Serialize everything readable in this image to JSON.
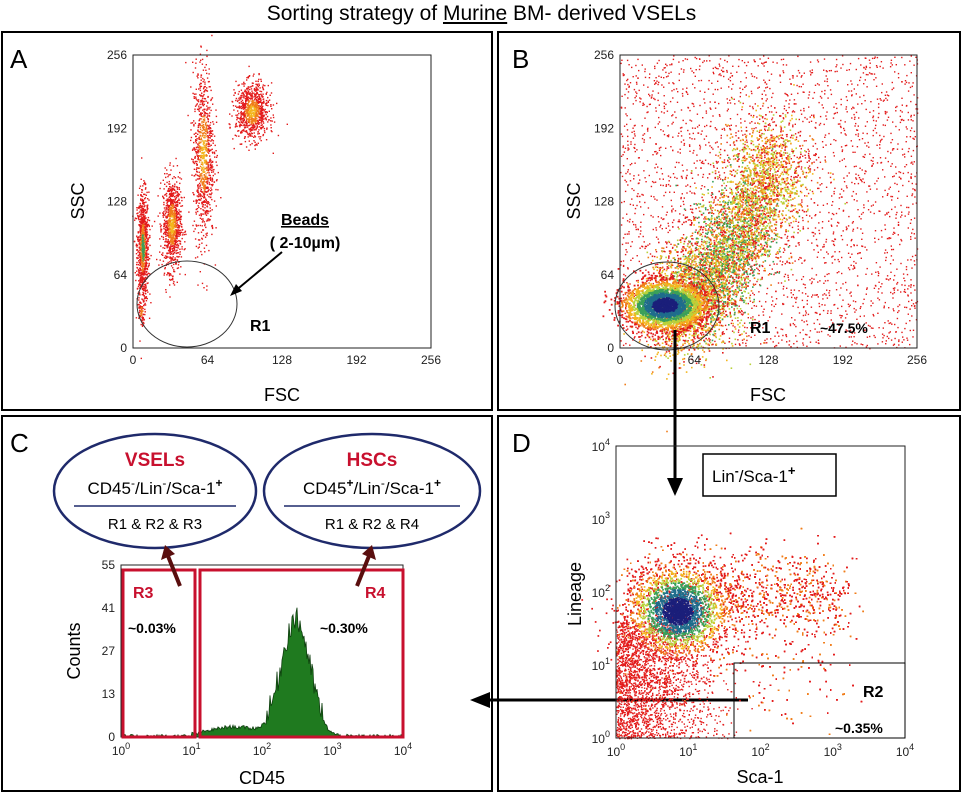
{
  "title": {
    "pre": "Sorting  strategy of ",
    "underlined": "Murine",
    "post": " BM- derived VSELs"
  },
  "panels": {
    "A": {
      "letter": "A",
      "xlabel": "FSC",
      "ylabel": "SSC",
      "xticks": [
        "0",
        "64",
        "128",
        "192",
        "256"
      ],
      "yticks": [
        "0",
        "64",
        "128",
        "192",
        "256"
      ],
      "gate": "R1",
      "beads_title": "Beads",
      "beads_size": "( 2-10µm)"
    },
    "B": {
      "letter": "B",
      "xlabel": "FSC",
      "ylabel": "SSC",
      "xticks": [
        "0",
        "64",
        "128",
        "192",
        "256"
      ],
      "yticks": [
        "0",
        "64",
        "128",
        "192",
        "256"
      ],
      "gate": "R1",
      "gate_pct": "~47.5%"
    },
    "C": {
      "letter": "C",
      "xlabel": "CD45",
      "ylabel": "Counts",
      "yticks": [
        "0",
        "13",
        "27",
        "41",
        "55"
      ],
      "gates": [
        {
          "name": "R3",
          "pct": "~0.03%"
        },
        {
          "name": "R4",
          "pct": "~0.30%"
        }
      ],
      "vsel": {
        "name": "VSELs",
        "rule": "R1 & R2 & R3"
      },
      "hsc": {
        "name": "HSCs",
        "rule": "R1 & R2 & R4"
      }
    },
    "D": {
      "letter": "D",
      "xlabel": "Sca-1",
      "ylabel": "Lineage",
      "label_box": "Lin",
      "gate": "R2",
      "gate_pct": "~0.35%"
    }
  },
  "chart_data": [
    {
      "type": "scatter",
      "panel": "A",
      "xlabel": "FSC",
      "ylabel": "SSC",
      "xlim": [
        0,
        256
      ],
      "ylim": [
        0,
        256
      ],
      "clusters": [
        {
          "x": 8,
          "y": 88,
          "sx": 2.5,
          "sy": 24
        },
        {
          "x": 33,
          "y": 108,
          "sx": 4,
          "sy": 20
        },
        {
          "x": 60,
          "y": 170,
          "sx": 4.5,
          "sy": 38
        },
        {
          "x": 102,
          "y": 207,
          "sx": 7,
          "sy": 12
        },
        {
          "x": 7,
          "y": 32,
          "sx": 1.5,
          "sy": 5
        }
      ]
    },
    {
      "type": "scatter",
      "panel": "B",
      "xlabel": "FSC",
      "ylabel": "SSC",
      "xlim": [
        0,
        256
      ],
      "ylim": [
        0,
        256
      ],
      "gate_pct": 47.5
    },
    {
      "type": "histogram",
      "panel": "C",
      "xlabel": "CD45",
      "ylabel": "Counts",
      "xscale": "log",
      "xlim": [
        1,
        10000
      ],
      "ylim": [
        0,
        55
      ],
      "peak_x": 300,
      "peak_count": 36
    },
    {
      "type": "scatter",
      "panel": "D",
      "xlabel": "Sca-1",
      "ylabel": "Lineage",
      "xscale": "log",
      "yscale": "log",
      "xlim": [
        1,
        10000
      ],
      "ylim": [
        1,
        10000
      ],
      "gate_pct": 0.35
    }
  ]
}
